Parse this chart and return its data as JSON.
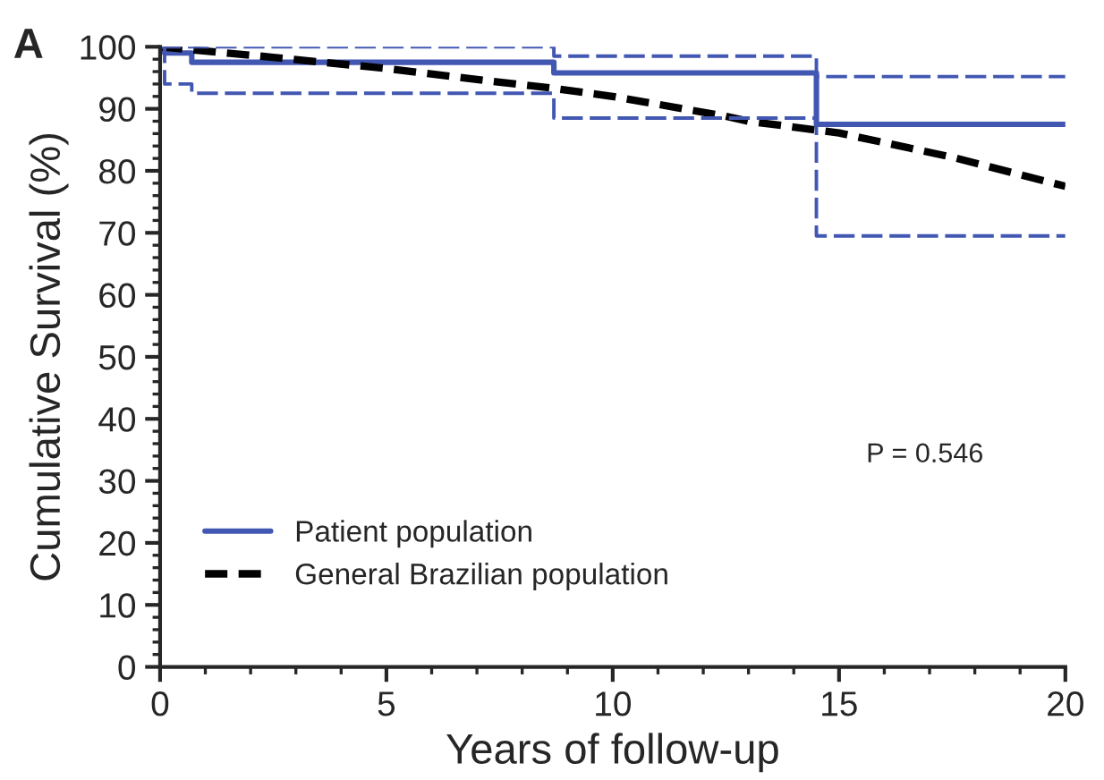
{
  "chart_data": {
    "type": "step",
    "xlabel": "Years of follow-up",
    "ylabel": "Cumulative Survival (%)",
    "xlim": [
      0,
      20
    ],
    "xticks": [
      0,
      5,
      10,
      15,
      20
    ],
    "ylim": [
      0,
      100
    ],
    "yticks": [
      0,
      10,
      20,
      30,
      40,
      50,
      60,
      70,
      80,
      90,
      100
    ],
    "grid": false,
    "legend": "bottom left",
    "marker": "none",
    "annotations": [
      "A",
      "P = 0.546"
    ],
    "series": [
      {
        "name": "Patient population",
        "color": "#4257b2",
        "line_style": "solid",
        "x": [
          0,
          0.1,
          0.7,
          8.7,
          14.5,
          20
        ],
        "values": [
          100,
          99,
          97.5,
          95.8,
          87.5,
          87.5
        ]
      },
      {
        "name": "General Brazilian population",
        "type": "line",
        "color": "#000000",
        "line_style": "dashed",
        "x": [
          0,
          2.5,
          5,
          7.5,
          8.7,
          10,
          12.5,
          13,
          15,
          17.5,
          20
        ],
        "values": [
          100,
          98.3,
          96.5,
          94.3,
          93.3,
          92,
          88.8,
          88,
          86.1,
          82.2,
          77.5
        ]
      },
      {
        "color": "#4257b2",
        "line_style": "dashed",
        "x": [
          0,
          8.7,
          14.5,
          20
        ],
        "values": [
          100,
          98.5,
          95.2,
          95.2
        ]
      },
      {
        "color": "#4257b2",
        "line_style": "dashed",
        "x": [
          0,
          0.1,
          0.7,
          8.7,
          14.5,
          20
        ],
        "values": [
          100,
          94,
          92.5,
          88.5,
          69.5,
          69.5
        ]
      }
    ]
  }
}
